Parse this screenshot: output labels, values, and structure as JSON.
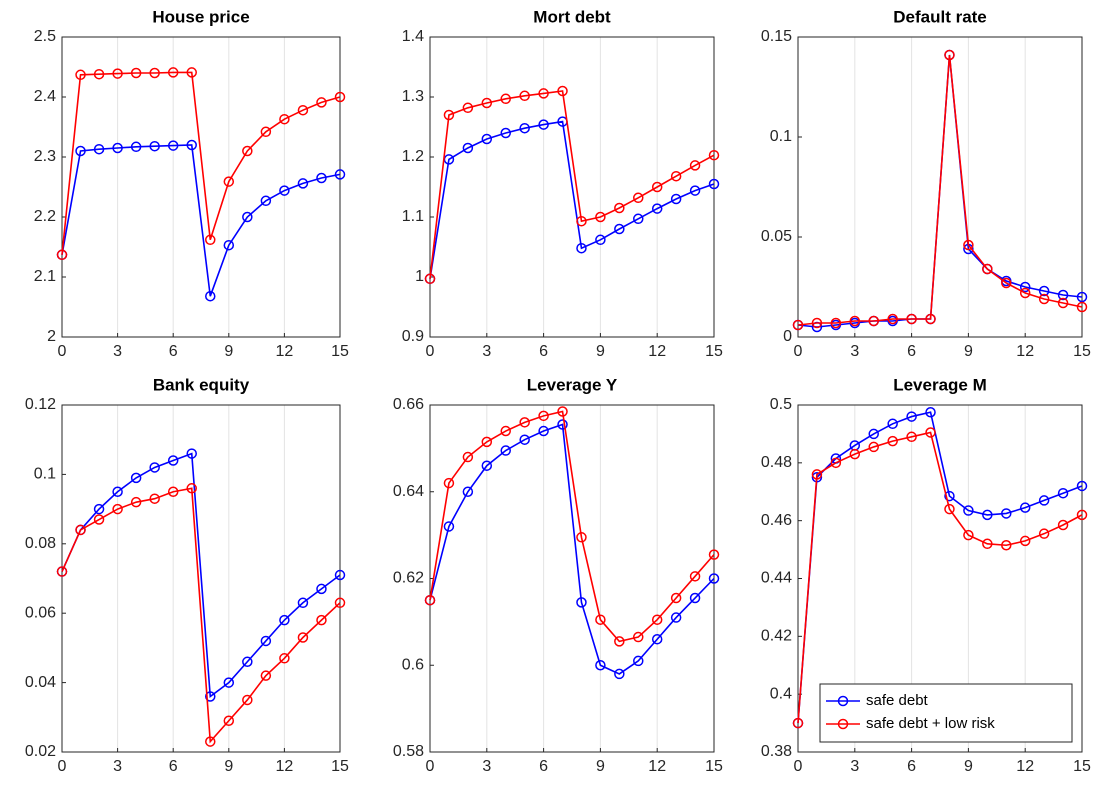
{
  "chart_data": [
    {
      "type": "line",
      "title": "House price",
      "x": [
        0,
        1,
        2,
        3,
        4,
        5,
        6,
        7,
        8,
        9,
        10,
        11,
        12,
        13,
        14,
        15
      ],
      "series": [
        {
          "color": "#0000ff",
          "values": [
            2.137,
            2.31,
            2.313,
            2.315,
            2.317,
            2.318,
            2.319,
            2.32,
            2.068,
            2.153,
            2.2,
            2.227,
            2.244,
            2.256,
            2.265,
            2.271
          ]
        },
        {
          "color": "#ff0000",
          "values": [
            2.137,
            2.437,
            2.438,
            2.439,
            2.44,
            2.44,
            2.441,
            2.441,
            2.162,
            2.259,
            2.31,
            2.342,
            2.363,
            2.378,
            2.391,
            2.4
          ]
        }
      ],
      "xlim": [
        0,
        15
      ],
      "xticks": [
        0,
        3,
        6,
        9,
        12,
        15
      ],
      "ylim": [
        2,
        2.5
      ],
      "yticks": [
        2,
        2.1,
        2.2,
        2.3,
        2.4,
        2.5
      ],
      "grid": "x"
    },
    {
      "type": "line",
      "title": "Mort debt",
      "x": [
        0,
        1,
        2,
        3,
        4,
        5,
        6,
        7,
        8,
        9,
        10,
        11,
        12,
        13,
        14,
        15
      ],
      "series": [
        {
          "color": "#0000ff",
          "values": [
            0.997,
            1.196,
            1.215,
            1.23,
            1.24,
            1.248,
            1.254,
            1.259,
            1.048,
            1.062,
            1.08,
            1.097,
            1.114,
            1.13,
            1.144,
            1.155
          ]
        },
        {
          "color": "#ff0000",
          "values": [
            0.997,
            1.27,
            1.282,
            1.29,
            1.297,
            1.302,
            1.306,
            1.31,
            1.093,
            1.1,
            1.115,
            1.132,
            1.15,
            1.168,
            1.186,
            1.203
          ]
        }
      ],
      "xlim": [
        0,
        15
      ],
      "xticks": [
        0,
        3,
        6,
        9,
        12,
        15
      ],
      "ylim": [
        0.9,
        1.4
      ],
      "yticks": [
        0.9,
        1,
        1.1,
        1.2,
        1.3,
        1.4
      ],
      "grid": "x"
    },
    {
      "type": "line",
      "title": "Default rate",
      "x": [
        0,
        1,
        2,
        3,
        4,
        5,
        6,
        7,
        8,
        9,
        10,
        11,
        12,
        13,
        14,
        15
      ],
      "series": [
        {
          "color": "#0000ff",
          "values": [
            0.006,
            0.005,
            0.006,
            0.007,
            0.008,
            0.008,
            0.009,
            0.009,
            0.141,
            0.044,
            0.034,
            0.028,
            0.025,
            0.023,
            0.021,
            0.02
          ]
        },
        {
          "color": "#ff0000",
          "values": [
            0.006,
            0.007,
            0.007,
            0.008,
            0.008,
            0.009,
            0.009,
            0.009,
            0.141,
            0.046,
            0.034,
            0.027,
            0.022,
            0.019,
            0.017,
            0.015
          ]
        }
      ],
      "xlim": [
        0,
        15
      ],
      "xticks": [
        0,
        3,
        6,
        9,
        12,
        15
      ],
      "ylim": [
        0,
        0.15
      ],
      "yticks": [
        0,
        0.05,
        0.1,
        0.15
      ],
      "grid": "x"
    },
    {
      "type": "line",
      "title": "Bank equity",
      "x": [
        0,
        1,
        2,
        3,
        4,
        5,
        6,
        7,
        8,
        9,
        10,
        11,
        12,
        13,
        14,
        15
      ],
      "series": [
        {
          "color": "#0000ff",
          "values": [
            0.072,
            0.084,
            0.09,
            0.095,
            0.099,
            0.102,
            0.104,
            0.106,
            0.036,
            0.04,
            0.046,
            0.052,
            0.058,
            0.063,
            0.067,
            0.071
          ]
        },
        {
          "color": "#ff0000",
          "values": [
            0.072,
            0.084,
            0.087,
            0.09,
            0.092,
            0.093,
            0.095,
            0.096,
            0.023,
            0.029,
            0.035,
            0.042,
            0.047,
            0.053,
            0.058,
            0.063
          ]
        }
      ],
      "xlim": [
        0,
        15
      ],
      "xticks": [
        0,
        3,
        6,
        9,
        12,
        15
      ],
      "ylim": [
        0.02,
        0.12
      ],
      "yticks": [
        0.02,
        0.04,
        0.06,
        0.08,
        0.1,
        0.12
      ],
      "grid": "x"
    },
    {
      "type": "line",
      "title": "Leverage Y",
      "x": [
        0,
        1,
        2,
        3,
        4,
        5,
        6,
        7,
        8,
        9,
        10,
        11,
        12,
        13,
        14,
        15
      ],
      "series": [
        {
          "color": "#0000ff",
          "values": [
            0.615,
            0.632,
            0.64,
            0.646,
            0.6495,
            0.652,
            0.654,
            0.6555,
            0.6145,
            0.6,
            0.598,
            0.601,
            0.606,
            0.611,
            0.6155,
            0.62
          ]
        },
        {
          "color": "#ff0000",
          "values": [
            0.615,
            0.642,
            0.648,
            0.6515,
            0.654,
            0.656,
            0.6575,
            0.6585,
            0.6295,
            0.6105,
            0.6055,
            0.6065,
            0.6105,
            0.6155,
            0.6205,
            0.6255
          ]
        }
      ],
      "xlim": [
        0,
        15
      ],
      "xticks": [
        0,
        3,
        6,
        9,
        12,
        15
      ],
      "ylim": [
        0.58,
        0.66
      ],
      "yticks": [
        0.58,
        0.6,
        0.62,
        0.64,
        0.66
      ],
      "grid": "x"
    },
    {
      "type": "line",
      "title": "Leverage M",
      "x": [
        0,
        1,
        2,
        3,
        4,
        5,
        6,
        7,
        8,
        9,
        10,
        11,
        12,
        13,
        14,
        15
      ],
      "series": [
        {
          "name": "safe debt",
          "color": "#0000ff",
          "values": [
            0.39,
            0.475,
            0.4815,
            0.486,
            0.49,
            0.4935,
            0.496,
            0.4975,
            0.4685,
            0.4635,
            0.462,
            0.4625,
            0.4645,
            0.467,
            0.4695,
            0.472
          ]
        },
        {
          "name": "safe debt + low risk",
          "color": "#ff0000",
          "values": [
            0.39,
            0.476,
            0.48,
            0.483,
            0.4855,
            0.4875,
            0.489,
            0.4905,
            0.464,
            0.455,
            0.452,
            0.4515,
            0.453,
            0.4555,
            0.4585,
            0.462
          ]
        }
      ],
      "xlim": [
        0,
        15
      ],
      "xticks": [
        0,
        3,
        6,
        9,
        12,
        15
      ],
      "ylim": [
        0.38,
        0.5
      ],
      "yticks": [
        0.38,
        0.4,
        0.42,
        0.44,
        0.46,
        0.48,
        0.5
      ],
      "grid": "x",
      "legend": "lower right"
    }
  ]
}
